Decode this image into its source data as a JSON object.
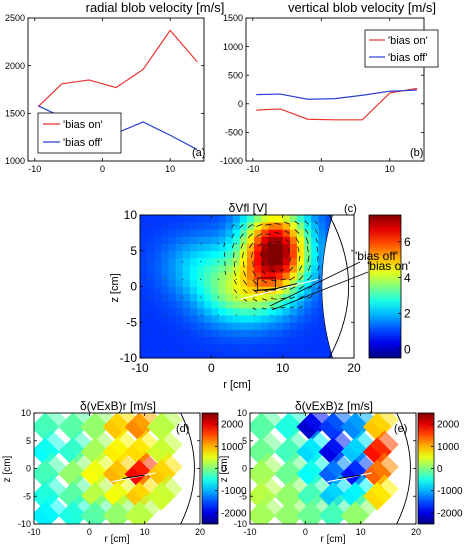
{
  "chart_data": [
    {
      "type": "line",
      "title": "radial blob velocity  [m/s]",
      "panel_label": "(a)",
      "xlim": [
        -11,
        15
      ],
      "ylim": [
        1000,
        2500
      ],
      "xticks": [
        -10,
        0,
        10
      ],
      "yticks": [
        1000,
        1500,
        2000,
        2500
      ],
      "legend": "bottom-left",
      "series": [
        {
          "name": "'bias on'",
          "color": "#e8352e",
          "x": [
            -9.5,
            -6,
            -2,
            2,
            6,
            10,
            14
          ],
          "y": [
            1570,
            1810,
            1850,
            1770,
            1960,
            2370,
            2040
          ]
        },
        {
          "name": "'bias off'",
          "color": "#2b3fd6",
          "x": [
            -9.5,
            -6,
            -2,
            2,
            6,
            10,
            14
          ],
          "y": [
            1580,
            1460,
            1360,
            1290,
            1410,
            1270,
            1120
          ]
        }
      ]
    },
    {
      "type": "line",
      "title": "vertical blob velocity  [m/s]",
      "panel_label": "(b)",
      "xlim": [
        -11,
        15
      ],
      "ylim": [
        -1000,
        1500
      ],
      "xticks": [
        -10,
        0,
        10
      ],
      "yticks": [
        -1000,
        -500,
        0,
        500,
        1000,
        1500
      ],
      "legend": "top-right",
      "series": [
        {
          "name": "'bias on'",
          "color": "#e8352e",
          "x": [
            -9.5,
            -6,
            -2,
            2,
            6,
            10,
            14
          ],
          "y": [
            -110,
            -90,
            -270,
            -280,
            -280,
            190,
            270
          ]
        },
        {
          "name": "'bias off'",
          "color": "#2b3fd6",
          "x": [
            -9.5,
            -6,
            -2,
            2,
            6,
            10,
            14
          ],
          "y": [
            160,
            170,
            80,
            90,
            150,
            220,
            240
          ]
        }
      ]
    },
    {
      "type": "heatmap",
      "title": "δVfl [V]",
      "panel_label": "(c)",
      "xlabel": "r [cm]",
      "ylabel": "z [cm]",
      "xlim": [
        -10,
        20
      ],
      "ylim": [
        -10,
        10
      ],
      "xticks": [
        -10,
        0,
        10,
        20
      ],
      "yticks": [
        -10,
        -5,
        0,
        5,
        10
      ],
      "colorbar_ticks": [
        0,
        2,
        4,
        6
      ],
      "colorbar_range": [
        -0.5,
        7.5
      ],
      "annotations": [
        "'bias off'",
        "'bias on'"
      ],
      "features": [
        {
          "x": 9,
          "y": 5,
          "amplitude": 6.8,
          "sx": 3.2,
          "sy": 4.0
        },
        {
          "x": 4,
          "y": -1,
          "amplitude": 2.5,
          "sx": 4.0,
          "sy": 3.0
        },
        {
          "x": -1,
          "y": 3,
          "amplitude": 1.3,
          "sx": 4.0,
          "sy": 3.0
        }
      ],
      "background": 0.9
    },
    {
      "type": "heatmap",
      "title": "δ(vExB)r  [m/s]",
      "panel_label": "(d)",
      "xlabel": "r [cm]",
      "ylabel": "z [cm]",
      "xlim": [
        -10,
        20
      ],
      "ylim": [
        -10,
        10
      ],
      "xticks": [
        -10,
        0,
        10,
        20
      ],
      "yticks": [
        -10,
        -5,
        0,
        5,
        10
      ],
      "colorbar_ticks": [
        -2000,
        -1000,
        0,
        1000,
        2000
      ],
      "colorbar_range": [
        -2500,
        2500
      ],
      "cells": [
        [
          -8,
          7.5,
          -300
        ],
        [
          -3,
          7.5,
          -200
        ],
        [
          1,
          7.5,
          100
        ],
        [
          5,
          7.5,
          900
        ],
        [
          9,
          7.5,
          1200
        ],
        [
          13,
          7.5,
          300
        ],
        [
          -8,
          3,
          -600
        ],
        [
          -3,
          3,
          -400
        ],
        [
          1,
          3,
          200
        ],
        [
          5,
          3,
          700
        ],
        [
          9,
          3,
          800
        ],
        [
          13,
          3,
          400
        ],
        [
          -8,
          -1,
          -300
        ],
        [
          -3,
          -1,
          100
        ],
        [
          1,
          -1,
          600
        ],
        [
          5,
          -1,
          1000
        ],
        [
          9,
          -1,
          1900
        ],
        [
          13,
          -1,
          900
        ],
        [
          -8,
          -5,
          -500
        ],
        [
          -3,
          -5,
          -200
        ],
        [
          1,
          -5,
          300
        ],
        [
          5,
          -5,
          600
        ],
        [
          9,
          -5,
          900
        ],
        [
          13,
          -5,
          400
        ],
        [
          -8,
          -8.5,
          -700
        ],
        [
          -3,
          -8.5,
          -500
        ],
        [
          1,
          -8.5,
          -200
        ],
        [
          5,
          -8.5,
          100
        ],
        [
          9,
          -8.5,
          300
        ]
      ]
    },
    {
      "type": "heatmap",
      "title": "δ(vExB)z  [m/s]",
      "panel_label": "(e)",
      "xlabel": "r [cm]",
      "ylabel": "z [cm]",
      "xlim": [
        -10,
        20
      ],
      "ylim": [
        -10,
        10
      ],
      "xticks": [
        -10,
        0,
        10,
        20
      ],
      "yticks": [
        -10,
        -5,
        0,
        5,
        10
      ],
      "colorbar_ticks": [
        -2000,
        -1000,
        0,
        1000,
        2000
      ],
      "colorbar_range": [
        -2500,
        2500
      ],
      "cells": [
        [
          -8,
          7.5,
          -200
        ],
        [
          -3,
          7.5,
          -500
        ],
        [
          1,
          7.5,
          -2100
        ],
        [
          5,
          7.5,
          -1600
        ],
        [
          9,
          7.5,
          -1200
        ],
        [
          13,
          7.5,
          900
        ],
        [
          -8,
          3,
          -100
        ],
        [
          -3,
          3,
          -300
        ],
        [
          1,
          3,
          -800
        ],
        [
          5,
          3,
          -2000
        ],
        [
          9,
          3,
          -900
        ],
        [
          13,
          3,
          1800
        ],
        [
          -8,
          -1,
          200
        ],
        [
          -3,
          -1,
          -100
        ],
        [
          1,
          -1,
          -600
        ],
        [
          5,
          -1,
          -1400
        ],
        [
          9,
          -1,
          -1800
        ],
        [
          13,
          -1,
          1400
        ],
        [
          -8,
          -5,
          300
        ],
        [
          -3,
          -5,
          100
        ],
        [
          1,
          -5,
          -300
        ],
        [
          5,
          -5,
          -900
        ],
        [
          9,
          -5,
          -700
        ],
        [
          13,
          -5,
          800
        ],
        [
          -8,
          -8.5,
          200
        ],
        [
          -3,
          -8.5,
          100
        ],
        [
          1,
          -8.5,
          -100
        ],
        [
          5,
          -8.5,
          -300
        ],
        [
          9,
          -8.5,
          100
        ]
      ]
    }
  ]
}
